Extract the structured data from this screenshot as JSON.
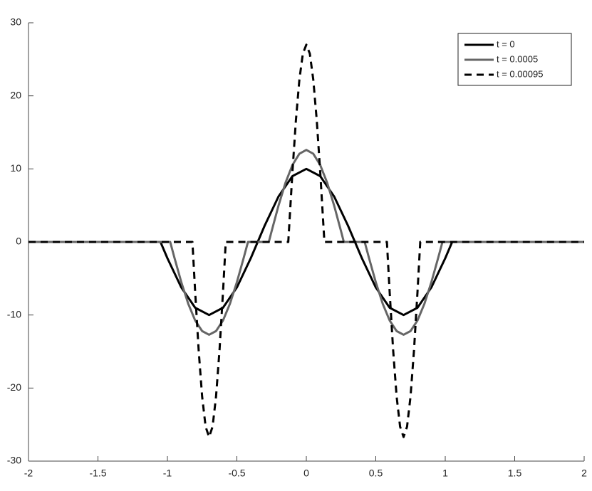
{
  "chart_data": {
    "type": "line",
    "xlim": [
      -2,
      2
    ],
    "ylim": [
      -30,
      30
    ],
    "xticks": [
      -2,
      -1.5,
      -1,
      -0.5,
      0,
      0.5,
      1,
      1.5,
      2
    ],
    "yticks": [
      -30,
      -20,
      -10,
      0,
      10,
      20,
      30
    ],
    "legend": "upper right",
    "series": [
      {
        "name": "t = 0",
        "color": "#000000",
        "dashed": false,
        "x": [
          -2,
          -1.05,
          -1,
          -0.9,
          -0.8,
          -0.7,
          -0.6,
          -0.5,
          -0.4,
          -0.35,
          -0.3,
          -0.2,
          -0.1,
          0,
          0.1,
          0.2,
          0.3,
          0.35,
          0.4,
          0.5,
          0.6,
          0.7,
          0.8,
          0.9,
          1,
          1.05,
          2
        ],
        "values": [
          0,
          0,
          -2.23,
          -6.23,
          -9.01,
          -10,
          -9.01,
          -6.23,
          -2.23,
          0,
          2.23,
          6.23,
          9.01,
          10,
          9.01,
          6.23,
          2.23,
          0,
          -2.23,
          -6.23,
          -9.01,
          -10,
          -9.01,
          -6.23,
          -2.23,
          0,
          0
        ]
      },
      {
        "name": "t = 0.0005",
        "color": "#666666",
        "dashed": false,
        "x": [
          -2,
          -0.98,
          -0.95,
          -0.9,
          -0.85,
          -0.8,
          -0.75,
          -0.7,
          -0.65,
          -0.6,
          -0.55,
          -0.5,
          -0.45,
          -0.42,
          -0.27,
          -0.25,
          -0.2,
          -0.15,
          -0.1,
          -0.05,
          0,
          0.05,
          0.1,
          0.15,
          0.2,
          0.25,
          0.27,
          0.42,
          0.45,
          0.5,
          0.55,
          0.6,
          0.65,
          0.7,
          0.75,
          0.8,
          0.85,
          0.9,
          0.95,
          0.98,
          2
        ],
        "values": [
          0,
          0,
          -2.12,
          -5.51,
          -8.47,
          -10.76,
          -12.2,
          -12.7,
          -12.2,
          -10.76,
          -8.47,
          -5.51,
          -2.12,
          0,
          0,
          1.46,
          4.99,
          8.1,
          10.53,
          12.07,
          12.6,
          12.07,
          10.53,
          8.1,
          4.99,
          1.46,
          0,
          0,
          -2.12,
          -5.51,
          -8.47,
          -10.76,
          -12.2,
          -12.7,
          -12.2,
          -10.76,
          -8.47,
          -5.51,
          -2.12,
          0,
          0
        ]
      },
      {
        "name": "t = 0.00095",
        "color": "#000000",
        "dashed": true,
        "x": [
          -2,
          -0.82,
          -0.8,
          -0.775,
          -0.75,
          -0.725,
          -0.7,
          -0.675,
          -0.65,
          -0.625,
          -0.6,
          -0.58,
          -0.13,
          -0.1,
          -0.075,
          -0.05,
          -0.025,
          0,
          0.025,
          0.05,
          0.075,
          0.1,
          0.13,
          0.58,
          0.6,
          0.625,
          0.65,
          0.675,
          0.7,
          0.725,
          0.75,
          0.775,
          0.8,
          0.82,
          2
        ],
        "values": [
          0,
          0,
          -6.91,
          -14.84,
          -21.17,
          -25.29,
          -26.7,
          -25.29,
          -21.17,
          -14.84,
          -6.91,
          0,
          0,
          9.59,
          16.66,
          22.22,
          25.78,
          27,
          25.78,
          22.22,
          16.66,
          9.59,
          0,
          0,
          -6.91,
          -14.84,
          -21.17,
          -25.29,
          -26.7,
          -25.29,
          -21.17,
          -14.84,
          -6.91,
          0,
          0
        ]
      }
    ]
  }
}
